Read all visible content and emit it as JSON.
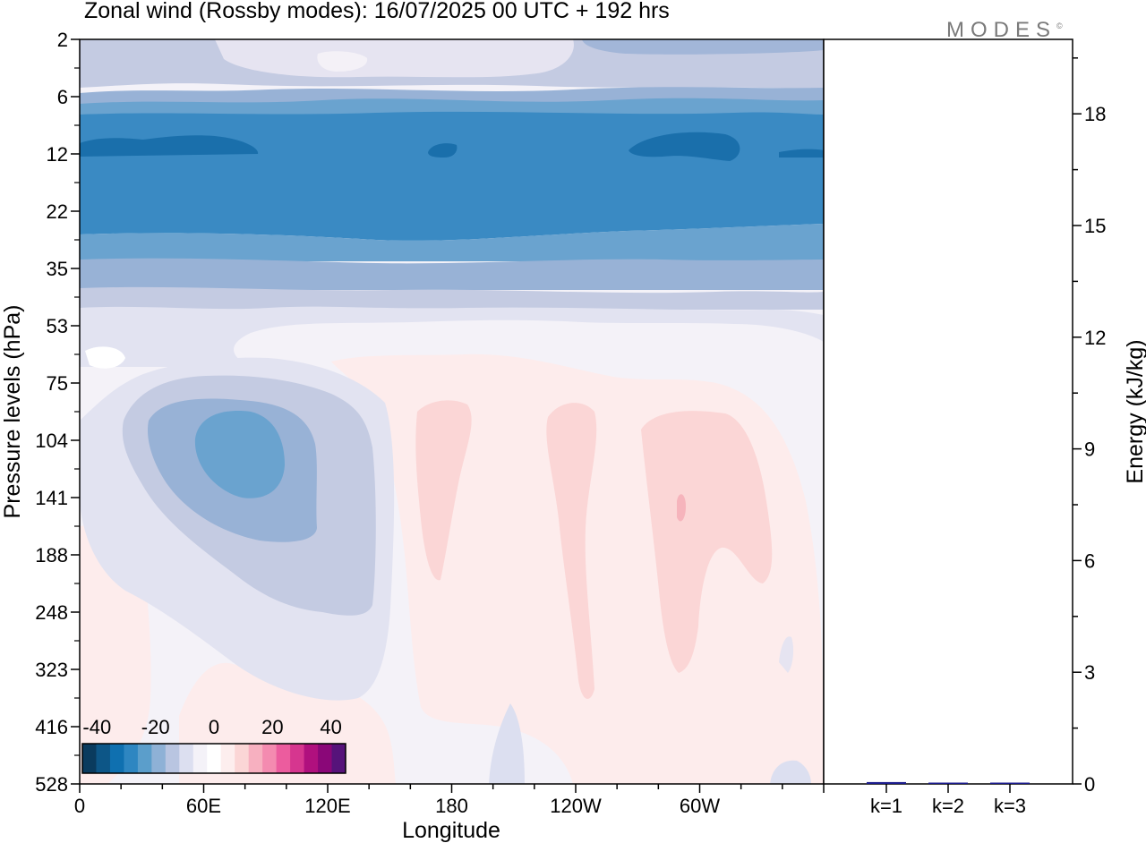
{
  "title": "Zonal wind (Rossby modes):  16/07/2025  00 UTC  + 192 hrs",
  "brand": "MODES",
  "brand_mark": "©",
  "chart_data": [
    {
      "type": "heatmap",
      "xlabel": "Longitude",
      "ylabel": "Pressure levels (hPa)",
      "x_tick_labels": [
        "0",
        "60E",
        "120E",
        "180",
        "120W",
        "60W"
      ],
      "x_tick_values_deg": [
        0,
        60,
        120,
        180,
        240,
        300
      ],
      "xlim_deg": [
        0,
        360
      ],
      "y_tick_labels": [
        "2",
        "6",
        "12",
        "22",
        "35",
        "53",
        "75",
        "104",
        "141",
        "188",
        "248",
        "323",
        "416",
        "528"
      ],
      "y_axis_inverted": true,
      "colorbar": {
        "tick_labels": [
          "-40",
          "-20",
          "0",
          "20",
          "40"
        ],
        "range": [
          -45,
          45
        ],
        "step": 5,
        "colors": [
          "#0a3b5e",
          "#0d5687",
          "#0f70b0",
          "#2e86c1",
          "#5b9ecb",
          "#8eb1d6",
          "#b9c5e1",
          "#dcdff0",
          "#f4f2f8",
          "#ffffff",
          "#fdeeee",
          "#fbd6d6",
          "#f7b0c0",
          "#f48bb0",
          "#ec5c9e",
          "#d6368f",
          "#b0107e",
          "#8a0778",
          "#56137a"
        ]
      },
      "bands": [
        {
          "level_top": 2,
          "level_bottom": 4,
          "value": -7
        },
        {
          "level_top": 4,
          "level_bottom": 6,
          "value": -10
        },
        {
          "level_top": 6,
          "level_bottom": 9,
          "value": -17
        },
        {
          "level_top": 9,
          "level_bottom": 25,
          "value": -26
        },
        {
          "level_top": 25,
          "level_bottom": 34,
          "value": -17
        },
        {
          "level_top": 34,
          "level_bottom": 45,
          "value": -13
        },
        {
          "level_top": 45,
          "level_bottom": 60,
          "value": -7
        }
      ],
      "features": [
        {
          "lon": 77,
          "level": 104,
          "value": -17
        },
        {
          "lon": 48,
          "level": 12,
          "value": -32
        },
        {
          "lon": 285,
          "level": 12,
          "value": -32
        },
        {
          "lon": 180,
          "level": 130,
          "value": 7
        },
        {
          "lon": 235,
          "level": 130,
          "value": 7
        },
        {
          "lon": 290,
          "level": 141,
          "value": 12
        }
      ]
    },
    {
      "type": "bar",
      "categories": [
        "k=1",
        "k=2",
        "k=3"
      ],
      "values": [
        0.05,
        0.02,
        0.01
      ],
      "ylabel": "Energy (kJ/kg)",
      "ylim": [
        0,
        20
      ],
      "y_tick_values": [
        0,
        3,
        6,
        9,
        12,
        15,
        18
      ],
      "y_tick_labels": [
        "0",
        "3",
        "6",
        "9",
        "12",
        "15",
        "18"
      ],
      "bar_color": "#1c1c8c"
    }
  ]
}
